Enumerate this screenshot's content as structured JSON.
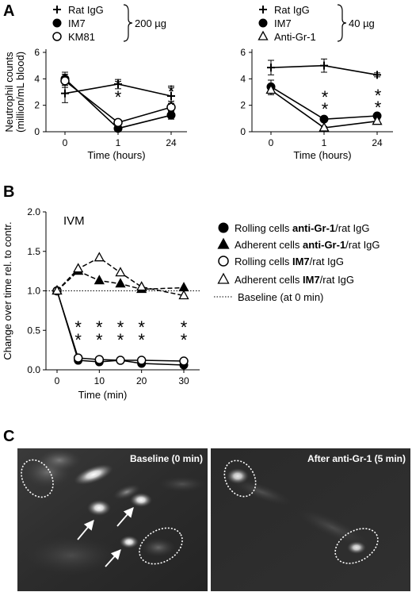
{
  "panels": {
    "A": {
      "letter": "A"
    },
    "B": {
      "letter": "B"
    },
    "C": {
      "letter": "C"
    }
  },
  "chart_data": [
    {
      "id": "A-left",
      "type": "line",
      "ylabel_lines": [
        "Neutrophil counts",
        "(million/mL blood)"
      ],
      "xlabel": "Time (hours)",
      "categories": [
        "0",
        "1",
        "24"
      ],
      "ylim": [
        0,
        6
      ],
      "yticks": [
        0,
        2,
        4,
        6
      ],
      "dose_label": "200 µg",
      "series": [
        {
          "name": "Rat IgG",
          "marker": "plus",
          "values": [
            2.9,
            3.6,
            2.7
          ],
          "err": [
            0.7,
            0.35,
            0.75
          ]
        },
        {
          "name": "IM7",
          "marker": "circle-filled",
          "values": [
            4.0,
            0.25,
            1.25
          ],
          "err": [
            0.5,
            0.1,
            0.3
          ]
        },
        {
          "name": "KM81",
          "marker": "circle-open",
          "values": [
            3.85,
            0.7,
            1.85
          ],
          "err": [
            0.5,
            0.2,
            0.3
          ]
        }
      ],
      "significance": [
        {
          "x": "1",
          "marks": [
            "*",
            "*"
          ]
        },
        {
          "x": "24",
          "marks": [
            "*",
            "*"
          ]
        }
      ]
    },
    {
      "id": "A-right",
      "type": "line",
      "xlabel": "Time (hours)",
      "categories": [
        "0",
        "1",
        "24"
      ],
      "ylim": [
        0,
        6
      ],
      "yticks": [
        0,
        2,
        4,
        6
      ],
      "dose_label": "40 µg",
      "series": [
        {
          "name": "Rat IgG",
          "marker": "plus",
          "values": [
            4.85,
            5.0,
            4.3
          ],
          "err": [
            0.55,
            0.5,
            0.15
          ]
        },
        {
          "name": "IM7",
          "marker": "circle-filled",
          "values": [
            3.4,
            0.95,
            1.2
          ],
          "err": [
            0.5,
            0.2,
            0.2
          ]
        },
        {
          "name": "Anti-Gr-1",
          "marker": "triangle-open",
          "values": [
            3.15,
            0.3,
            0.8
          ],
          "err": [
            0.35,
            0.1,
            0.15
          ]
        }
      ],
      "significance": [
        {
          "x": "1",
          "marks": [
            "*",
            "*"
          ]
        },
        {
          "x": "24",
          "marks": [
            "*",
            "*"
          ]
        }
      ]
    },
    {
      "id": "B",
      "type": "line",
      "title": "IVM",
      "ylabel": "Change over time rel. to contr.",
      "xlabel": "Time (min)",
      "x": [
        0,
        5,
        10,
        15,
        20,
        30
      ],
      "ylim": [
        0,
        2
      ],
      "yticks": [
        "0.0",
        "0.5",
        "1.0",
        "1.5",
        "2.0"
      ],
      "xticks": [
        0,
        10,
        20,
        30
      ],
      "series": [
        {
          "name_plain": "Rolling cells ",
          "name_bold": "anti-Gr-1",
          "name_tail": "/rat IgG",
          "marker": "circle-filled",
          "dash": "solid",
          "values": [
            1.0,
            0.12,
            0.1,
            0.12,
            0.08,
            0.06
          ]
        },
        {
          "name_plain": "Adherent cells ",
          "name_bold": "anti-Gr-1",
          "name_tail": "/rat IgG",
          "marker": "triangle-filled",
          "dash": "dashed",
          "values": [
            1.0,
            1.25,
            1.13,
            1.09,
            1.02,
            1.04
          ]
        },
        {
          "name_plain": "Rolling cells ",
          "name_bold": "IM7",
          "name_tail": "/rat IgG",
          "marker": "circle-open",
          "dash": "solid",
          "values": [
            1.0,
            0.15,
            0.13,
            0.12,
            0.12,
            0.11
          ]
        },
        {
          "name_plain": "Adherent cells ",
          "name_bold": "IM7",
          "name_tail": "/rat IgG",
          "marker": "triangle-open",
          "dash": "dashed",
          "values": [
            1.0,
            1.28,
            1.42,
            1.23,
            1.05,
            0.94
          ]
        }
      ],
      "baseline": {
        "name": "Baseline (at 0 min)",
        "value": 1.0
      },
      "significance_x": [
        5,
        10,
        15,
        20,
        30
      ],
      "significance_marks": [
        "*",
        "*"
      ]
    }
  ],
  "images": {
    "left_label": "Baseline (0 min)",
    "right_label": "After anti-Gr-1 (5 min)"
  }
}
